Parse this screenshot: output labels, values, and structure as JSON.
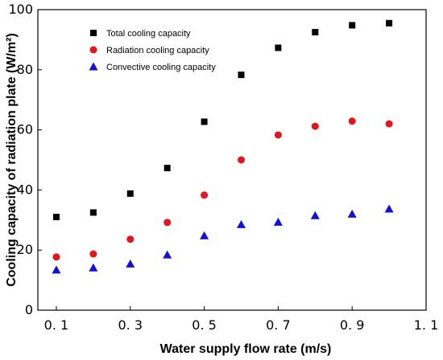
{
  "chart_data": {
    "type": "scatter",
    "xlabel": "Water supply flow rate (m/s)",
    "ylabel": "Cooling capacity of radiation plate (W/m²)",
    "xlim": [
      0.05,
      1.1
    ],
    "ylim": [
      0,
      100
    ],
    "x_ticks": [
      0.1,
      0.3,
      0.5,
      0.7,
      0.9,
      1.1
    ],
    "x_tick_labels": [
      "0. 1",
      "0. 3",
      "0. 5",
      "0. 7",
      "0. 9",
      "1. 1"
    ],
    "y_ticks": [
      0,
      20,
      40,
      60,
      80,
      100
    ],
    "y_tick_labels": [
      "0",
      "20",
      "40",
      "60",
      "80",
      "100"
    ],
    "grid": false,
    "legend_position": "top-left",
    "series": [
      {
        "name": "Total cooling capacity",
        "marker": "square",
        "color": "#000000",
        "x": [
          0.1,
          0.2,
          0.3,
          0.4,
          0.5,
          0.6,
          0.7,
          0.8,
          0.9,
          1.0
        ],
        "y": [
          31,
          32.5,
          38.8,
          47.3,
          62.7,
          78.3,
          87.3,
          92.5,
          94.8,
          95.5
        ]
      },
      {
        "name": "Radiation cooling capacity",
        "marker": "circle",
        "color": "#e8141b",
        "x": [
          0.1,
          0.2,
          0.3,
          0.4,
          0.5,
          0.6,
          0.7,
          0.8,
          0.9,
          1.0
        ],
        "y": [
          17.7,
          18.7,
          23.6,
          29.2,
          38.3,
          50.0,
          58.3,
          61.2,
          62.9,
          62.0
        ]
      },
      {
        "name": "Convective cooling capacity",
        "marker": "triangle",
        "color": "#1010e0",
        "x": [
          0.1,
          0.2,
          0.3,
          0.4,
          0.5,
          0.6,
          0.7,
          0.8,
          0.9,
          1.0
        ],
        "y": [
          13.4,
          14.1,
          15.4,
          18.4,
          24.8,
          28.5,
          29.3,
          31.5,
          32.0,
          33.7
        ]
      }
    ]
  }
}
